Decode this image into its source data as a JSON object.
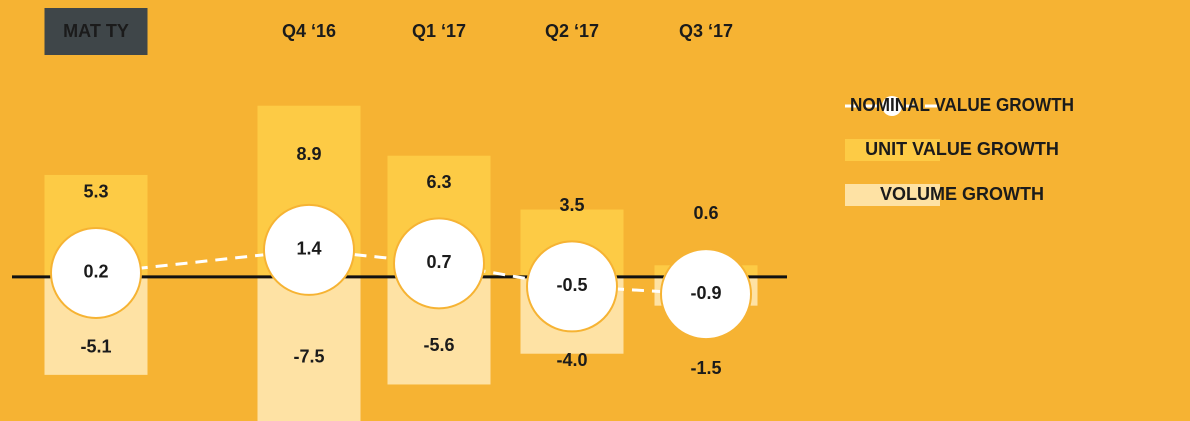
{
  "chart_data": {
    "type": "growth-bubbles",
    "categories": [
      "MAT TY",
      "Q4 ‘16",
      "Q1 ‘17",
      "Q2 ‘17",
      "Q3 ‘17"
    ],
    "highlight_category": 0,
    "series": [
      {
        "name": "NOMINAL VALUE GROWTH",
        "color": "#ffffff",
        "values": [
          0.2,
          1.4,
          0.7,
          -0.5,
          -0.9
        ]
      },
      {
        "name": "UNIT VALUE GROWTH",
        "color": "#fdcb45",
        "values": [
          5.3,
          8.9,
          6.3,
          3.5,
          0.6
        ]
      },
      {
        "name": "VOLUME GROWTH",
        "color": "#fee2a4",
        "values": [
          -5.1,
          -7.5,
          -5.6,
          -4.0,
          -1.5
        ],
        "value_labels": [
          "-5.1",
          "-7.5",
          "-5.6",
          "-4.0",
          "-1.5"
        ]
      }
    ],
    "ylim": [
      -7.5,
      14.4
    ]
  }
}
